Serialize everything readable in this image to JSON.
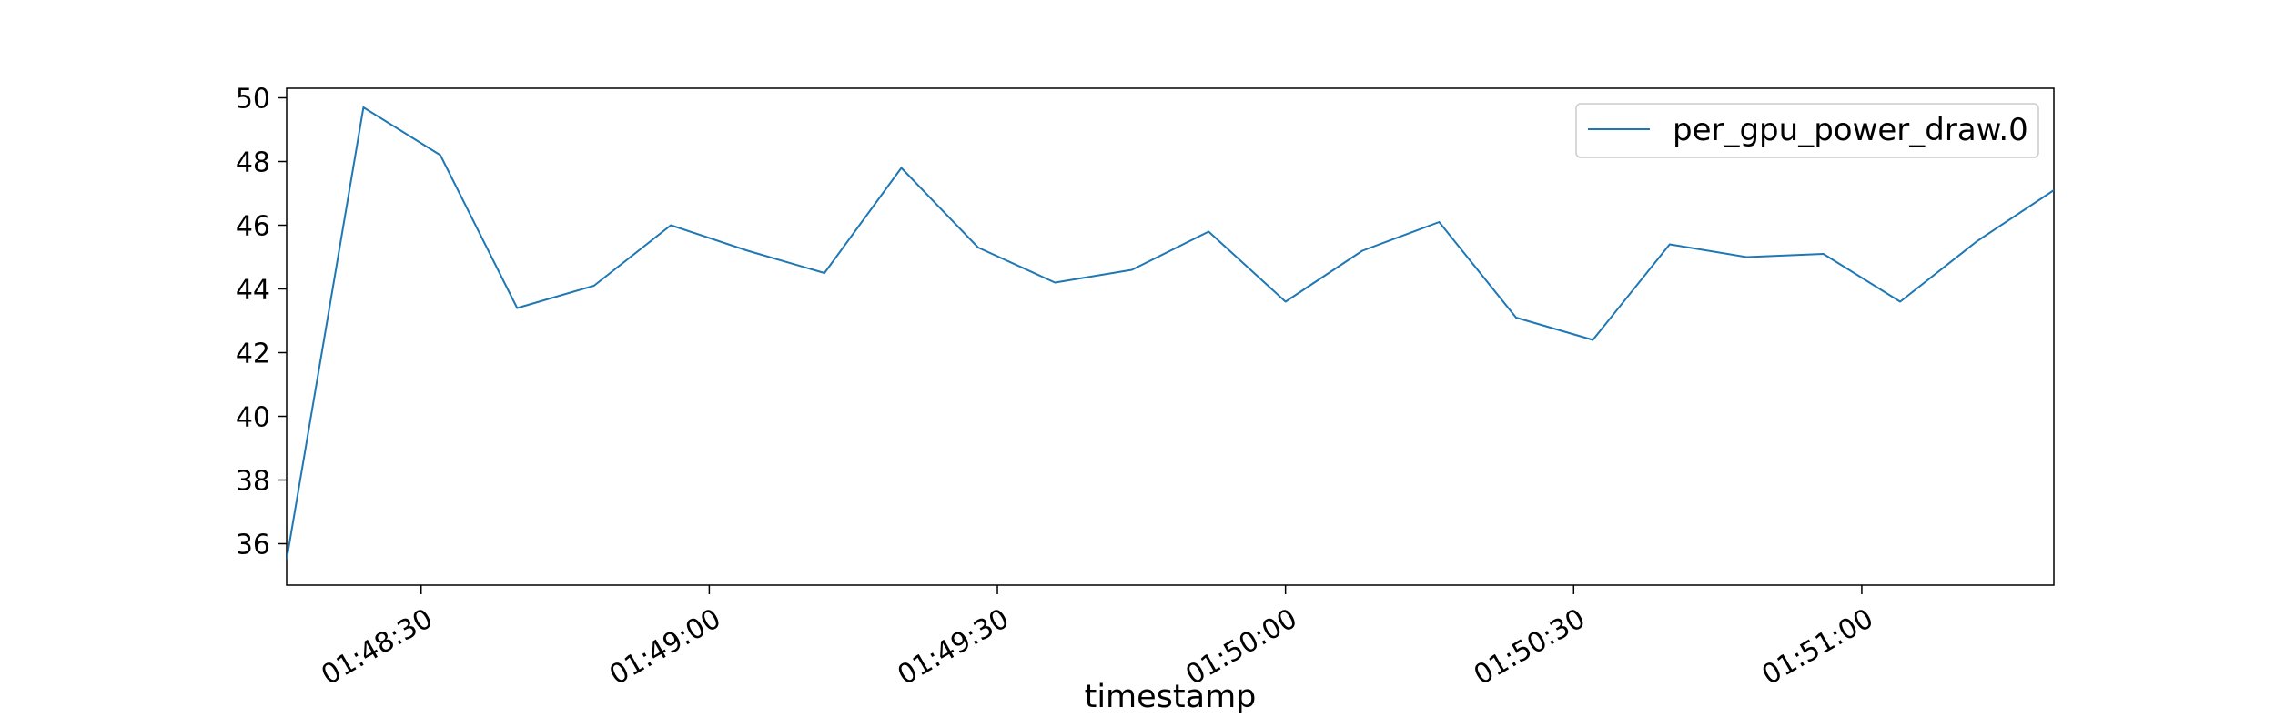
{
  "chart_data": {
    "type": "line",
    "title": "",
    "xlabel": "timestamp",
    "ylabel": "",
    "xlim_seconds_of_day": [
      6496,
      6680
    ],
    "x_ticks": [
      {
        "label": "01:48:30",
        "t": "01:48:30"
      },
      {
        "label": "01:49:00",
        "t": "01:49:00"
      },
      {
        "label": "01:49:30",
        "t": "01:49:30"
      },
      {
        "label": "01:50:00",
        "t": "01:50:00"
      },
      {
        "label": "01:50:30",
        "t": "01:50:30"
      },
      {
        "label": "01:51:00",
        "t": "01:51:00"
      }
    ],
    "ylim": [
      34.7,
      50.3
    ],
    "y_ticks": [
      36,
      38,
      40,
      42,
      44,
      46,
      48,
      50
    ],
    "grid": false,
    "legend_position": "top-right",
    "series": [
      {
        "name": "per_gpu_power_draw.0",
        "color": "#1f77b4",
        "points": [
          {
            "t": "01:48:16",
            "y": 35.5
          },
          {
            "t": "01:48:24",
            "y": 49.7
          },
          {
            "t": "01:48:32",
            "y": 48.2
          },
          {
            "t": "01:48:40",
            "y": 43.4
          },
          {
            "t": "01:48:48",
            "y": 44.1
          },
          {
            "t": "01:48:56",
            "y": 46.0
          },
          {
            "t": "01:49:04",
            "y": 45.2
          },
          {
            "t": "01:49:12",
            "y": 44.5
          },
          {
            "t": "01:49:20",
            "y": 47.8
          },
          {
            "t": "01:49:28",
            "y": 45.3
          },
          {
            "t": "01:49:36",
            "y": 44.2
          },
          {
            "t": "01:49:44",
            "y": 44.6
          },
          {
            "t": "01:49:52",
            "y": 45.8
          },
          {
            "t": "01:50:00",
            "y": 43.6
          },
          {
            "t": "01:50:08",
            "y": 45.2
          },
          {
            "t": "01:50:16",
            "y": 46.1
          },
          {
            "t": "01:50:24",
            "y": 43.1
          },
          {
            "t": "01:50:32",
            "y": 42.4
          },
          {
            "t": "01:50:40",
            "y": 45.4
          },
          {
            "t": "01:50:48",
            "y": 45.0
          },
          {
            "t": "01:50:56",
            "y": 45.1
          },
          {
            "t": "01:51:04",
            "y": 43.6
          },
          {
            "t": "01:51:12",
            "y": 45.5
          },
          {
            "t": "01:51:20",
            "y": 47.1
          }
        ]
      }
    ]
  }
}
